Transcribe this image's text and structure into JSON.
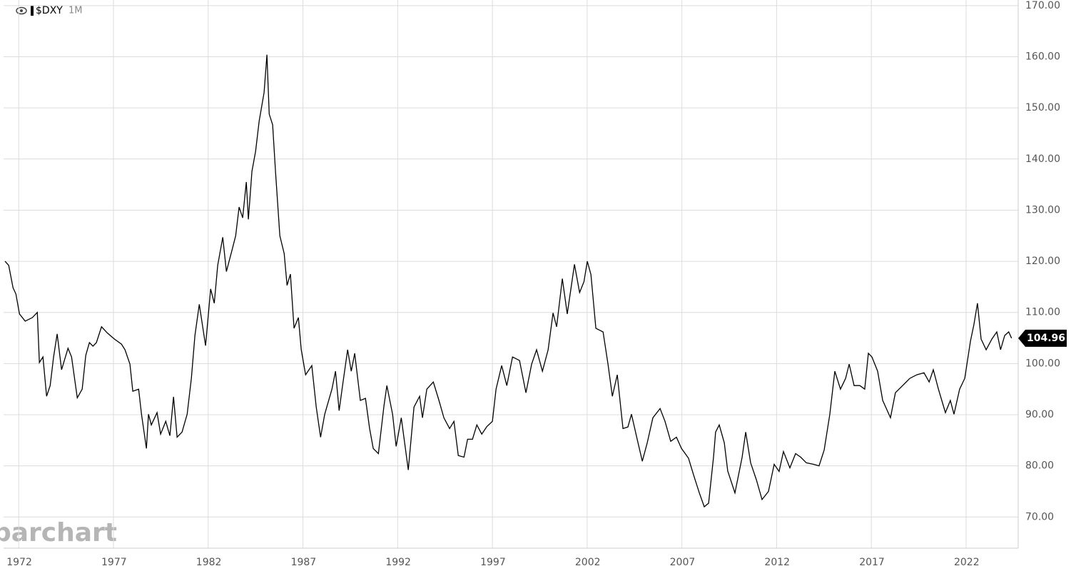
{
  "chart_data": {
    "type": "line",
    "title": "$DXY",
    "interval": "1M",
    "watermark": "barchart",
    "color": "#000000",
    "x": [
      1971.28,
      1971.47,
      1971.7,
      1971.85,
      1972.04,
      1972.34,
      1972.72,
      1972.98,
      1973.09,
      1973.28,
      1973.47,
      1973.66,
      1973.84,
      1974.03,
      1974.26,
      1974.6,
      1974.79,
      1975.09,
      1975.35,
      1975.54,
      1975.73,
      1975.92,
      1976.1,
      1976.37,
      1976.67,
      1977.05,
      1977.42,
      1977.61,
      1977.87,
      1978.02,
      1978.33,
      1978.48,
      1978.74,
      1978.85,
      1979.0,
      1979.3,
      1979.49,
      1979.76,
      1979.98,
      1980.17,
      1980.36,
      1980.62,
      1980.89,
      1981.11,
      1981.3,
      1981.53,
      1981.86,
      1982.13,
      1982.32,
      1982.5,
      1982.77,
      1982.96,
      1983.26,
      1983.45,
      1983.63,
      1983.82,
      1984.01,
      1984.12,
      1984.31,
      1984.5,
      1984.69,
      1984.95,
      1985.1,
      1985.22,
      1985.4,
      1985.55,
      1985.78,
      1986.01,
      1986.16,
      1986.34,
      1986.53,
      1986.76,
      1986.91,
      1987.14,
      1987.47,
      1987.7,
      1987.93,
      1988.15,
      1988.53,
      1988.72,
      1988.91,
      1989.09,
      1989.36,
      1989.55,
      1989.73,
      1990.03,
      1990.3,
      1990.52,
      1990.71,
      1990.98,
      1991.28,
      1991.43,
      1991.73,
      1991.92,
      1992.19,
      1992.56,
      1992.86,
      1993.16,
      1993.31,
      1993.54,
      1993.88,
      1994.18,
      1994.44,
      1994.74,
      1994.97,
      1995.2,
      1995.5,
      1995.69,
      1995.95,
      1996.18,
      1996.44,
      1996.71,
      1997.0,
      1997.19,
      1997.49,
      1997.76,
      1998.06,
      1998.43,
      1998.77,
      1999.07,
      1999.33,
      1999.64,
      1999.94,
      2000.2,
      2000.39,
      2000.69,
      2000.95,
      2001.22,
      2001.33,
      2001.6,
      2001.83,
      2002.01,
      2002.2,
      2002.46,
      2002.84,
      2003.1,
      2003.33,
      2003.59,
      2003.89,
      2004.15,
      2004.34,
      2004.64,
      2004.91,
      2005.17,
      2005.47,
      2005.85,
      2006.11,
      2006.41,
      2006.71,
      2006.98,
      2007.35,
      2007.62,
      2007.92,
      2008.18,
      2008.41,
      2008.67,
      2008.78,
      2008.97,
      2009.24,
      2009.42,
      2009.8,
      2010.18,
      2010.37,
      2010.63,
      2010.93,
      2011.23,
      2011.57,
      2011.87,
      2012.13,
      2012.36,
      2012.7,
      2013.0,
      2013.27,
      2013.57,
      2013.95,
      2014.24,
      2014.51,
      2014.81,
      2015.07,
      2015.37,
      2015.64,
      2015.83,
      2016.09,
      2016.39,
      2016.65,
      2016.84,
      2017.03,
      2017.33,
      2017.6,
      2018.01,
      2018.27,
      2018.65,
      2019.03,
      2019.4,
      2019.78,
      2020.05,
      2020.27,
      2020.54,
      2020.91,
      2021.17,
      2021.36,
      2021.66,
      2021.93,
      2022.23,
      2022.41,
      2022.6,
      2022.79,
      2023.06,
      2023.36,
      2023.62,
      2023.82,
      2024.04,
      2024.25,
      2024.4
    ],
    "values": [
      120.0,
      119.2,
      114.8,
      113.6,
      109.7,
      108.3,
      109.0,
      110.0,
      100.2,
      101.3,
      93.6,
      95.7,
      101.3,
      105.8,
      98.8,
      103.0,
      101.3,
      93.3,
      95.0,
      101.6,
      104.1,
      103.4,
      104.1,
      107.2,
      106.0,
      104.8,
      103.8,
      102.7,
      99.9,
      94.6,
      95.0,
      90.1,
      83.4,
      90.1,
      88.0,
      90.4,
      86.2,
      88.7,
      85.9,
      93.5,
      85.6,
      86.6,
      90.1,
      97.1,
      105.5,
      111.6,
      103.5,
      114.6,
      111.8,
      119.2,
      124.7,
      118.0,
      122.2,
      125.0,
      130.6,
      128.5,
      135.5,
      128.2,
      137.6,
      141.5,
      147.4,
      153.0,
      160.4,
      148.8,
      146.7,
      137.6,
      125.0,
      121.5,
      115.3,
      117.5,
      106.9,
      109.0,
      102.7,
      97.8,
      99.6,
      91.5,
      85.6,
      90.1,
      95.0,
      98.5,
      90.8,
      95.7,
      102.7,
      98.5,
      102.0,
      92.8,
      93.2,
      87.3,
      83.4,
      82.4,
      91.8,
      95.7,
      90.1,
      83.8,
      89.4,
      79.2,
      91.5,
      93.6,
      89.4,
      95.0,
      96.4,
      92.8,
      89.4,
      87.3,
      88.7,
      82.0,
      81.7,
      85.2,
      85.2,
      88.0,
      86.2,
      87.7,
      88.7,
      95.0,
      99.6,
      95.7,
      101.3,
      100.6,
      94.3,
      99.9,
      102.7,
      98.5,
      102.7,
      109.9,
      107.2,
      116.6,
      109.7,
      116.6,
      119.4,
      113.9,
      116.0,
      120.0,
      117.4,
      106.9,
      106.2,
      99.9,
      93.6,
      97.8,
      87.3,
      87.6,
      90.1,
      85.2,
      80.9,
      84.5,
      89.4,
      91.2,
      88.7,
      84.8,
      85.6,
      83.4,
      81.5,
      78.2,
      74.7,
      72.0,
      72.7,
      81.7,
      86.6,
      88.0,
      84.5,
      79.0,
      74.7,
      81.7,
      86.6,
      80.6,
      77.3,
      73.4,
      75.0,
      80.3,
      78.9,
      82.8,
      79.6,
      82.4,
      81.7,
      80.6,
      80.3,
      80.0,
      83.1,
      90.1,
      98.5,
      95.0,
      97.1,
      99.9,
      95.7,
      95.7,
      95.0,
      102.0,
      101.3,
      98.5,
      92.8,
      89.4,
      94.3,
      95.7,
      97.1,
      97.8,
      98.2,
      96.4,
      98.8,
      95.0,
      90.4,
      92.8,
      90.1,
      95.0,
      97.1,
      104.4,
      107.6,
      111.8,
      104.8,
      102.7,
      104.8,
      106.2,
      102.7,
      105.5,
      106.2,
      104.96
    ],
    "xlim": [
      1971.2,
      2024.75
    ],
    "xticks": [
      1972,
      1977,
      1982,
      1987,
      1992,
      1997,
      2002,
      2007,
      2012,
      2017,
      2022
    ],
    "ylim": [
      63.9,
      171.1
    ],
    "yticks": [
      {
        "value": 70,
        "label": "70.00"
      },
      {
        "value": 80,
        "label": "80.00"
      },
      {
        "value": 90,
        "label": "90.00"
      },
      {
        "value": 100,
        "label": "100.00"
      },
      {
        "value": 110,
        "label": "110.00"
      },
      {
        "value": 120,
        "label": "120.00"
      },
      {
        "value": 130,
        "label": "130.00"
      },
      {
        "value": 140,
        "label": "140.00"
      },
      {
        "value": 150,
        "label": "150.00"
      },
      {
        "value": 160,
        "label": "160.00"
      },
      {
        "value": 170,
        "label": "170.00"
      }
    ],
    "grid": true
  }
}
